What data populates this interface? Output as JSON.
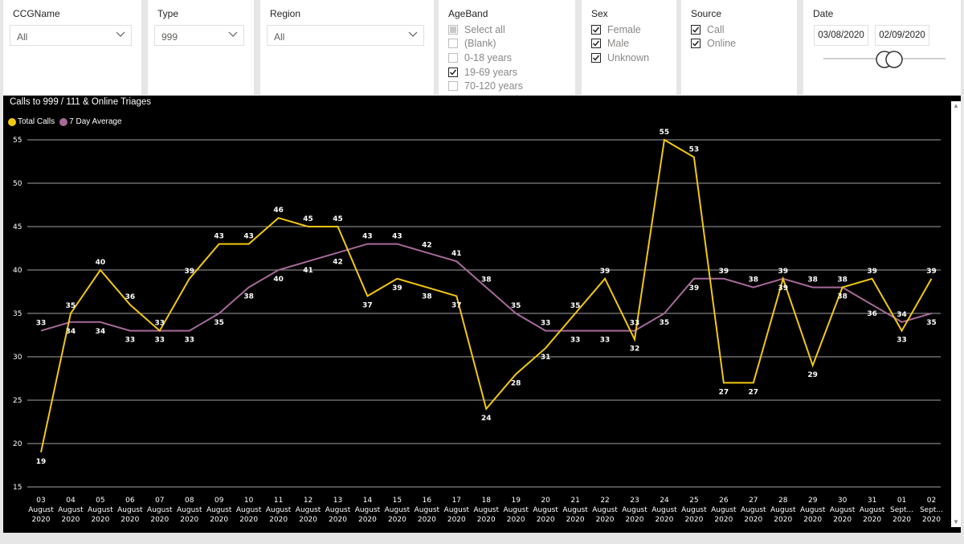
{
  "slicers": {
    "ccg": {
      "title": "CCGName",
      "value": "All"
    },
    "type": {
      "title": "Type",
      "value": "999"
    },
    "region": {
      "title": "Region",
      "value": "All"
    },
    "ageband": {
      "title": "AgeBand",
      "options": [
        {
          "label": "Select all",
          "state": "partial"
        },
        {
          "label": "(Blank)",
          "state": "unchecked"
        },
        {
          "label": "0-18 years",
          "state": "unchecked"
        },
        {
          "label": "19-69 years",
          "state": "checked"
        },
        {
          "label": "70-120 years",
          "state": "unchecked"
        }
      ]
    },
    "sex": {
      "title": "Sex",
      "options": [
        {
          "label": "Female",
          "state": "checked"
        },
        {
          "label": "Male",
          "state": "checked"
        },
        {
          "label": "Unknown",
          "state": "checked"
        }
      ]
    },
    "source": {
      "title": "Source",
      "options": [
        {
          "label": "Call",
          "state": "checked"
        },
        {
          "label": "Online",
          "state": "checked"
        }
      ]
    },
    "date": {
      "title": "Date",
      "start": "03/08/2020",
      "end": "02/09/2020"
    }
  },
  "chart_data": {
    "type": "line",
    "title": "Calls to 999 / 111 & Online Triages",
    "xlabel": "",
    "ylabel": "",
    "ylim": [
      15,
      55
    ],
    "yticks": [
      15,
      20,
      25,
      30,
      35,
      40,
      45,
      50,
      55
    ],
    "grid": true,
    "legend_position": "top-left",
    "categories": [
      [
        "03",
        "August",
        "2020"
      ],
      [
        "04",
        "August",
        "2020"
      ],
      [
        "05",
        "August",
        "2020"
      ],
      [
        "06",
        "August",
        "2020"
      ],
      [
        "07",
        "August",
        "2020"
      ],
      [
        "08",
        "August",
        "2020"
      ],
      [
        "09",
        "August",
        "2020"
      ],
      [
        "10",
        "August",
        "2020"
      ],
      [
        "11",
        "August",
        "2020"
      ],
      [
        "12",
        "August",
        "2020"
      ],
      [
        "13",
        "August",
        "2020"
      ],
      [
        "14",
        "August",
        "2020"
      ],
      [
        "15",
        "August",
        "2020"
      ],
      [
        "16",
        "August",
        "2020"
      ],
      [
        "17",
        "August",
        "2020"
      ],
      [
        "18",
        "August",
        "2020"
      ],
      [
        "19",
        "August",
        "2020"
      ],
      [
        "20",
        "August",
        "2020"
      ],
      [
        "21",
        "August",
        "2020"
      ],
      [
        "22",
        "August",
        "2020"
      ],
      [
        "23",
        "August",
        "2020"
      ],
      [
        "24",
        "August",
        "2020"
      ],
      [
        "25",
        "August",
        "2020"
      ],
      [
        "26",
        "August",
        "2020"
      ],
      [
        "27",
        "August",
        "2020"
      ],
      [
        "28",
        "August",
        "2020"
      ],
      [
        "29",
        "August",
        "2020"
      ],
      [
        "30",
        "August",
        "2020"
      ],
      [
        "31",
        "August",
        "2020"
      ],
      [
        "01",
        "Sept...",
        "2020"
      ],
      [
        "02",
        "Sept...",
        "2020"
      ]
    ],
    "series": [
      {
        "name": "Total Calls",
        "color": "#f2c811",
        "values": [
          19,
          35,
          40,
          36,
          33,
          39,
          43,
          43,
          46,
          45,
          45,
          37,
          39,
          38,
          37,
          24,
          28,
          31,
          35,
          39,
          32,
          55,
          53,
          27,
          27,
          39,
          29,
          38,
          39,
          33,
          39
        ]
      },
      {
        "name": "7 Day Average",
        "color": "#a66999",
        "values": [
          33,
          34,
          34,
          33,
          33,
          33,
          35,
          38,
          40,
          41,
          42,
          43,
          43,
          42,
          41,
          38,
          35,
          33,
          33,
          33,
          33,
          35,
          39,
          39,
          38,
          39,
          38,
          38,
          36,
          34,
          35
        ]
      }
    ]
  }
}
